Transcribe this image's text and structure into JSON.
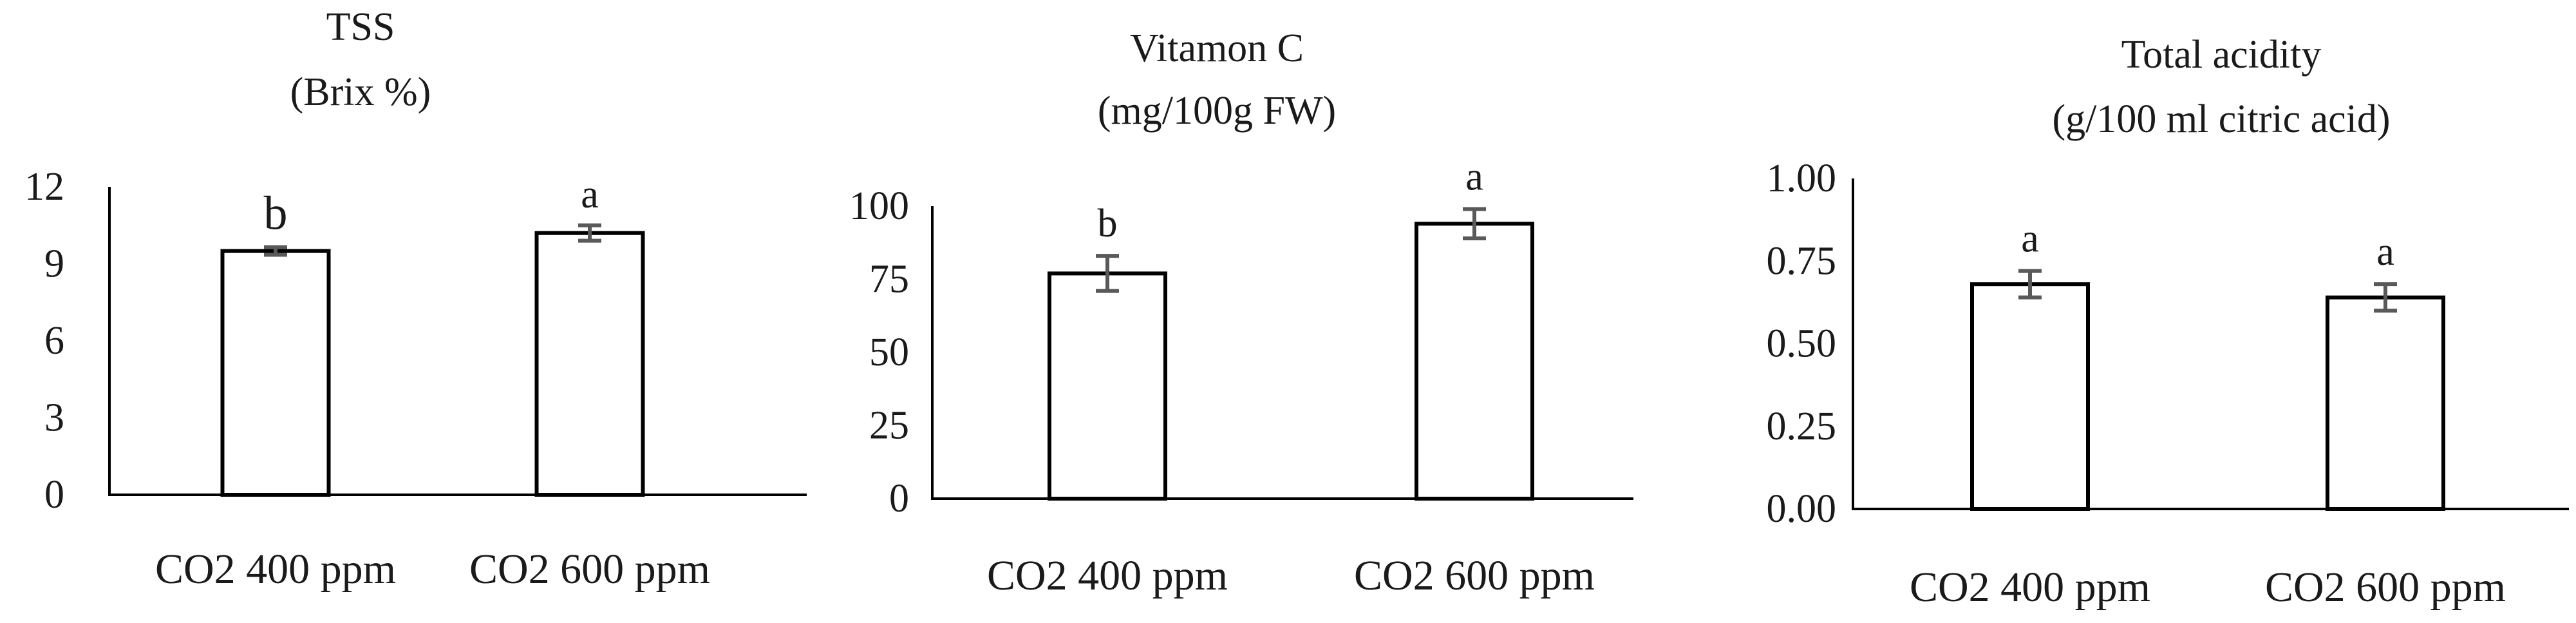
{
  "chart_data": [
    {
      "type": "bar",
      "title": [
        "TSS",
        "(Brix %)"
      ],
      "categories": [
        "CO2 400 ppm",
        "CO2 600 ppm"
      ],
      "values": [
        9.5,
        10.2
      ],
      "errors": [
        0.15,
        0.3
      ],
      "significance": [
        "b",
        "a"
      ],
      "ylim": [
        0,
        12
      ],
      "yticks": [
        "0",
        "3",
        "6",
        "9",
        "12"
      ],
      "tick_values": [
        0,
        3,
        6,
        9,
        12
      ],
      "grid": false
    },
    {
      "type": "bar",
      "title": [
        "Vitamon C",
        "(mg/100g FW)"
      ],
      "categories": [
        "CO2 400 ppm",
        "CO2 600 ppm"
      ],
      "values": [
        77,
        94
      ],
      "errors": [
        6,
        5
      ],
      "significance": [
        "b",
        "a"
      ],
      "ylim": [
        0,
        100
      ],
      "yticks": [
        "0",
        "25",
        "50",
        "75",
        "100"
      ],
      "tick_values": [
        0,
        25,
        50,
        75,
        100
      ],
      "grid": false
    },
    {
      "type": "bar",
      "title": [
        "Total acidity",
        "(g/100 ml citric acid)"
      ],
      "categories": [
        "CO2 400 ppm",
        "CO2 600 ppm"
      ],
      "values": [
        0.68,
        0.64
      ],
      "errors": [
        0.04,
        0.04
      ],
      "significance": [
        "a",
        "a"
      ],
      "ylim": [
        0,
        1
      ],
      "yticks": [
        "0.00",
        "0.25",
        "0.50",
        "0.75",
        "1.00"
      ],
      "tick_values": [
        0,
        0.25,
        0.5,
        0.75,
        1
      ],
      "grid": false
    }
  ]
}
